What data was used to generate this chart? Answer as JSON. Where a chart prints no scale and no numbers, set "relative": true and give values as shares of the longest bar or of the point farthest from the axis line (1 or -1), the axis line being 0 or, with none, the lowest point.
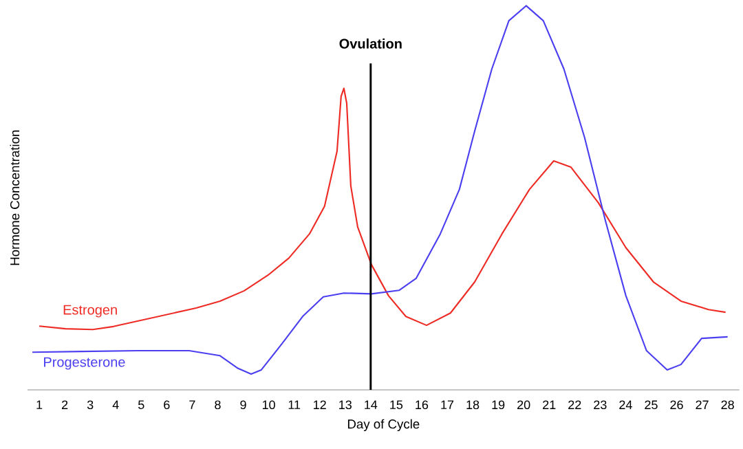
{
  "chart_data": {
    "type": "line",
    "relative": true,
    "xlabel": "Day of Cycle",
    "ylabel": "Hormone Concentration",
    "xlim": [
      0.54,
      28.46
    ],
    "xticks": [
      1,
      2,
      3,
      4,
      5,
      6,
      7,
      8,
      9,
      10,
      11,
      12,
      13,
      14,
      15,
      16,
      17,
      18,
      19,
      20,
      21,
      22,
      23,
      24,
      25,
      26,
      27,
      28
    ],
    "ref_lines": [
      {
        "axis": "x",
        "value": 14,
        "label": "Ovulation",
        "color": "#000000"
      }
    ],
    "series": [
      {
        "name": "Estrogen",
        "color": "#ee2b24",
        "x": [
          1.0,
          2.03,
          3.1,
          3.91,
          4.99,
          6.07,
          7.15,
          8.09,
          9.04,
          9.98,
          10.79,
          11.6,
          12.19,
          12.68,
          12.84,
          12.95,
          13.06,
          13.22,
          13.49,
          14.03,
          14.7,
          15.38,
          16.19,
          17.13,
          18.08,
          19.15,
          20.23,
          21.18,
          21.85,
          22.93,
          24.01,
          25.09,
          26.17,
          27.25,
          27.92
        ],
        "values": [
          0.166,
          0.159,
          0.157,
          0.165,
          0.181,
          0.197,
          0.213,
          0.231,
          0.258,
          0.299,
          0.343,
          0.406,
          0.478,
          0.621,
          0.764,
          0.785,
          0.746,
          0.531,
          0.424,
          0.326,
          0.245,
          0.191,
          0.168,
          0.2,
          0.281,
          0.406,
          0.522,
          0.596,
          0.58,
          0.487,
          0.37,
          0.281,
          0.231,
          0.209,
          0.202
        ]
      },
      {
        "name": "Progesterone",
        "color": "#4b3ff0",
        "x": [
          0.73,
          2.7,
          4.86,
          6.88,
          8.09,
          8.77,
          9.31,
          9.71,
          10.52,
          11.33,
          12.14,
          12.95,
          14.03,
          15.11,
          15.78,
          16.73,
          17.48,
          18.08,
          18.75,
          19.42,
          20.1,
          20.77,
          21.58,
          22.39,
          23.2,
          24.01,
          24.82,
          25.63,
          26.17,
          26.98,
          28.0
        ],
        "values": [
          0.098,
          0.1,
          0.102,
          0.102,
          0.089,
          0.057,
          0.041,
          0.052,
          0.12,
          0.191,
          0.242,
          0.252,
          0.25,
          0.259,
          0.29,
          0.406,
          0.522,
          0.674,
          0.835,
          0.961,
          1.0,
          0.961,
          0.835,
          0.657,
          0.442,
          0.245,
          0.102,
          0.052,
          0.066,
          0.134,
          0.138
        ]
      }
    ]
  }
}
